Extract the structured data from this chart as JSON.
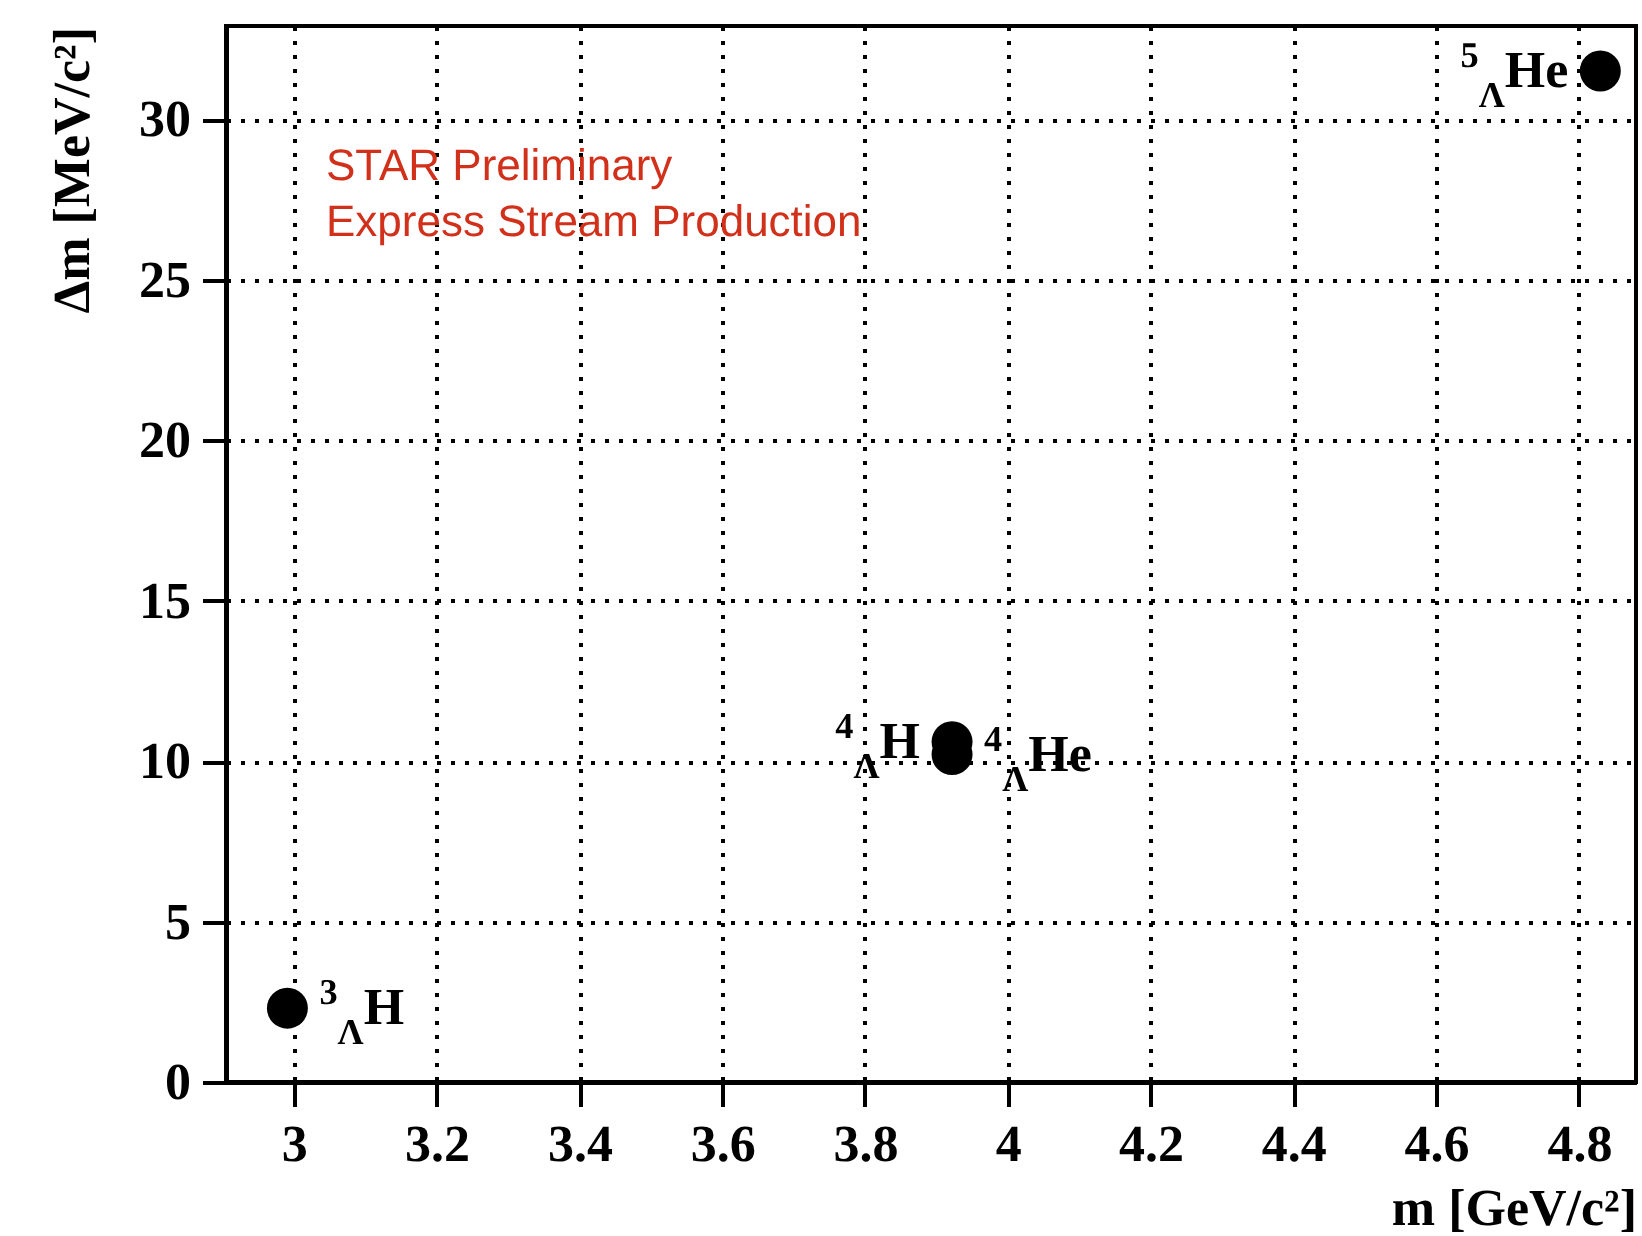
{
  "chart_data": {
    "type": "scatter",
    "xlabel": "m [GeV/c²]",
    "ylabel": "Δm [MeV/c²]",
    "x": [
      2.991,
      3.922,
      3.922,
      4.83
    ],
    "series": [
      {
        "color": "#000000",
        "values": [
          2.3,
          10.6,
          10.2,
          31.5
        ]
      }
    ],
    "xlim": [
      2.905,
      4.88
    ],
    "xticks": [
      3,
      3.2,
      3.4,
      3.6,
      3.8,
      4,
      4.2,
      4.4,
      4.6,
      4.8
    ],
    "ylim": [
      0,
      32.9
    ],
    "yticks": [
      0,
      5,
      10,
      15,
      20,
      25,
      30
    ],
    "grid": true,
    "marker": "circle",
    "annotations": [
      "STAR Preliminary",
      "Express Stream Production",
      {
        "text": "$^{3}$$_{Λ}$H",
        "x": 2.991,
        "y": 2.3
      },
      {
        "text": "$^{4}$$_{Λ}$H",
        "x": 3.922,
        "y": 10.6
      },
      {
        "text": "$^{4}$$_{Λ}$He",
        "x": 3.922,
        "y": 10.2
      },
      {
        "text": "$^{5}$$_{Λ}$He",
        "x": 4.83,
        "y": 31.5
      }
    ]
  }
}
